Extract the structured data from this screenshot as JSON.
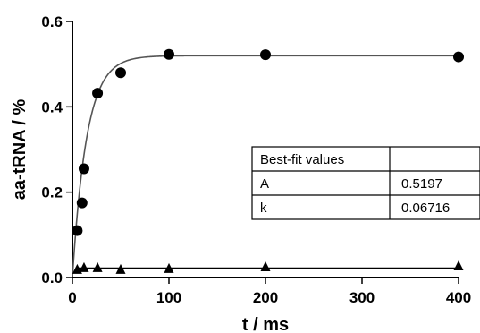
{
  "chart_data": {
    "type": "scatter",
    "xlabel": "t / ms",
    "ylabel": "aa-tRNA / %",
    "xlim": [
      0,
      400
    ],
    "ylim": [
      0,
      0.6
    ],
    "x_ticks": [
      0,
      100,
      200,
      300,
      400
    ],
    "y_ticks": [
      0.0,
      0.2,
      0.4,
      0.6
    ],
    "x_tick_labels": [
      "0",
      "100",
      "200",
      "300",
      "400"
    ],
    "y_tick_labels": [
      "0.0",
      "0.2",
      "0.4",
      "0.6"
    ],
    "grid": false,
    "colors": {
      "ink": "#000000",
      "fit_line": "#555555",
      "baseline": "#000000"
    },
    "series": [
      {
        "marker": "circle",
        "x": [
          5,
          10,
          12,
          26,
          50,
          100,
          200,
          400
        ],
        "y": [
          0.11,
          0.175,
          0.255,
          0.432,
          0.48,
          0.523,
          0.522,
          0.517
        ]
      },
      {
        "marker": "triangle",
        "x": [
          5,
          12,
          26,
          50,
          100,
          200,
          400
        ],
        "y": [
          0.018,
          0.022,
          0.022,
          0.018,
          0.02,
          0.024,
          0.026
        ]
      }
    ],
    "fit": {
      "model": "single-exponential",
      "A": 0.5197,
      "k": 0.06716,
      "x_range": [
        0,
        400
      ]
    },
    "baseline_line": {
      "y": 0.022,
      "x_range": [
        5,
        400
      ]
    },
    "fit_table": {
      "header": [
        "Best-fit values",
        ""
      ],
      "rows": [
        [
          "A",
          "0.5197"
        ],
        [
          "k",
          "0.06716"
        ]
      ]
    }
  }
}
